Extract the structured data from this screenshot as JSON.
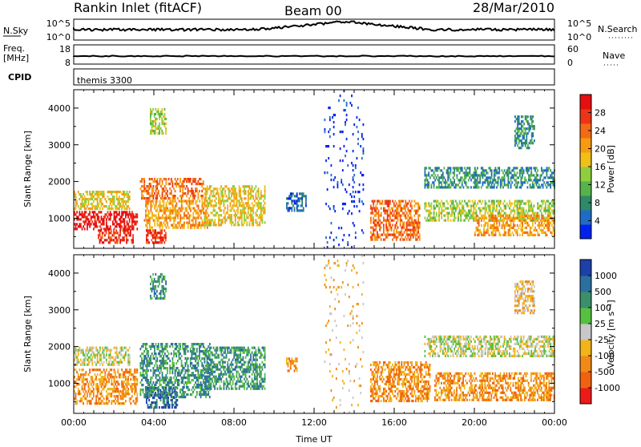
{
  "header": {
    "title": "Rankin Inlet (fitACF)",
    "beam": "Beam 00",
    "date": "28/Mar/2010"
  },
  "summary_panels": {
    "nsky_label": "N.Sky",
    "nsky_ticks": [
      "10^5",
      "10^0"
    ],
    "nsearch_label": "N.Search",
    "nsearch_ticks": [
      "10^5",
      "10^0"
    ],
    "freq_label": "Freq.",
    "freq_unit": "[MHz]",
    "freq_ticks": [
      "18",
      "8"
    ],
    "nave_label": "Nave",
    "nave_ticks": [
      "60",
      "0"
    ],
    "cpid_label": "CPID",
    "cpid_value": "themis 3300"
  },
  "chart_data": [
    {
      "type": "heatmap",
      "ylabel": "Slant Range [km]",
      "ylim": [
        180,
        4500
      ],
      "yticks": [
        "1000",
        "2000",
        "3000",
        "4000"
      ],
      "xlim": [
        0,
        24
      ],
      "colorbar_label": "Power [dB]",
      "colorbar_ticks": [
        "4",
        "8",
        "12",
        "16",
        "20",
        "24",
        "28"
      ],
      "colorbar_colors": [
        "#0022ee",
        "#1f6cc6",
        "#2f8a68",
        "#55b34a",
        "#8fce3c",
        "#f0c018",
        "#f79a10",
        "#f36a14",
        "#ee3416",
        "#e60e10"
      ],
      "blobs": [
        {
          "t0": 0.0,
          "t1": 3.2,
          "r0": 700,
          "r1": 1200,
          "level": 9
        },
        {
          "t0": 0.0,
          "t1": 2.8,
          "r0": 1200,
          "r1": 1750,
          "level": 5
        },
        {
          "t0": 1.2,
          "t1": 3.0,
          "r0": 300,
          "r1": 700,
          "level": 8
        },
        {
          "t0": 3.3,
          "t1": 6.5,
          "r0": 1500,
          "r1": 2100,
          "level": 7
        },
        {
          "t0": 3.5,
          "t1": 6.8,
          "r0": 700,
          "r1": 1500,
          "level": 6
        },
        {
          "t0": 3.6,
          "t1": 4.6,
          "r0": 300,
          "r1": 700,
          "level": 8
        },
        {
          "t0": 3.8,
          "t1": 4.6,
          "r0": 3300,
          "r1": 4000,
          "level": 4
        },
        {
          "t0": 6.5,
          "t1": 9.6,
          "r0": 800,
          "r1": 1900,
          "level": 5
        },
        {
          "t0": 10.6,
          "t1": 11.6,
          "r0": 1200,
          "r1": 1700,
          "level": 1
        },
        {
          "t0": 12.5,
          "t1": 14.5,
          "r0": 200,
          "r1": 4500,
          "level": 0
        },
        {
          "t0": 14.8,
          "t1": 17.3,
          "r0": 400,
          "r1": 1500,
          "level": 7
        },
        {
          "t0": 17.5,
          "t1": 24.0,
          "r0": 1800,
          "r1": 2400,
          "level": 2
        },
        {
          "t0": 17.5,
          "t1": 24.0,
          "r0": 900,
          "r1": 1500,
          "level": 4
        },
        {
          "t0": 20.0,
          "t1": 24.0,
          "r0": 500,
          "r1": 1100,
          "level": 6
        },
        {
          "t0": 22.0,
          "t1": 23.0,
          "r0": 2900,
          "r1": 3800,
          "level": 2
        }
      ]
    },
    {
      "type": "heatmap",
      "ylabel": "Slant Range [km]",
      "ylim": [
        180,
        4500
      ],
      "yticks": [
        "1000",
        "2000",
        "3000",
        "4000"
      ],
      "xlim": [
        0,
        24
      ],
      "xticks": [
        "00:00",
        "04:00",
        "08:00",
        "12:00",
        "16:00",
        "20:00",
        "00:00"
      ],
      "xlabel": "Time UT",
      "colorbar_label": "Velocity [m s⁻¹]",
      "colorbar_ticks": [
        "1000",
        "500",
        "100",
        "25",
        "-25",
        "-100",
        "-500",
        "-1000"
      ],
      "colorbar_colors": [
        "#1d3fa8",
        "#2a6fa0",
        "#3b8f6a",
        "#56c040",
        "#c8c8c8",
        "#f3b418",
        "#f08a14",
        "#f0620f",
        "#ee1a1a"
      ],
      "blobs": [
        {
          "t0": 0.0,
          "t1": 3.2,
          "r0": 400,
          "r1": 1400,
          "level": 6
        },
        {
          "t0": 0.0,
          "t1": 2.8,
          "r0": 1500,
          "r1": 2000,
          "level": 4
        },
        {
          "t0": 3.3,
          "t1": 6.8,
          "r0": 600,
          "r1": 2100,
          "level": 2
        },
        {
          "t0": 3.6,
          "t1": 5.2,
          "r0": 300,
          "r1": 900,
          "level": 1
        },
        {
          "t0": 3.8,
          "t1": 4.6,
          "r0": 3300,
          "r1": 4000,
          "level": 2
        },
        {
          "t0": 6.5,
          "t1": 9.6,
          "r0": 800,
          "r1": 2000,
          "level": 2
        },
        {
          "t0": 10.6,
          "t1": 11.2,
          "r0": 1300,
          "r1": 1700,
          "level": 6
        },
        {
          "t0": 12.5,
          "t1": 14.5,
          "r0": 200,
          "r1": 4500,
          "level": 5
        },
        {
          "t0": 14.8,
          "t1": 17.8,
          "r0": 500,
          "r1": 1600,
          "level": 6
        },
        {
          "t0": 17.5,
          "t1": 24.0,
          "r0": 1700,
          "r1": 2300,
          "level": 4
        },
        {
          "t0": 18.0,
          "t1": 24.0,
          "r0": 500,
          "r1": 1300,
          "level": 6
        },
        {
          "t0": 22.0,
          "t1": 23.0,
          "r0": 2900,
          "r1": 3800,
          "level": 5
        }
      ]
    }
  ]
}
